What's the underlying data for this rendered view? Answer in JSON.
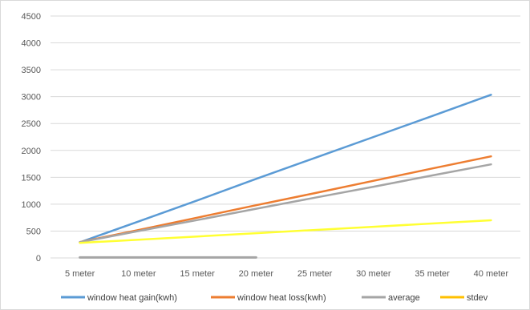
{
  "chart_data": {
    "type": "line",
    "categories": [
      "5 meter",
      "10 meter",
      "15 meter",
      "20 meter",
      "25 meter",
      "30 meter",
      "35 meter",
      "40 meter"
    ],
    "ylim": [
      0,
      4500
    ],
    "yticks": [
      0,
      500,
      1000,
      1500,
      2000,
      2500,
      3000,
      3500,
      4000,
      4500
    ],
    "ytick_labels": [
      "0",
      "500",
      "1000",
      "1500",
      "2000",
      "2500",
      "3000",
      "3500",
      "4000",
      "4500"
    ],
    "grid": true,
    "legend_position": "bottom",
    "series": [
      {
        "name": "window heat gain(kwh)",
        "color": "#5b9bd5",
        "values": [
          290,
          680,
          1070,
          1470,
          1860,
          2250,
          2640,
          3035
        ]
      },
      {
        "name": "window heat loss(kwh)",
        "color": "#ed7d31",
        "values": [
          295,
          520,
          750,
          980,
          1205,
          1435,
          1665,
          1890
        ]
      },
      {
        "name": "average",
        "color": "#a5a5a5",
        "values": [
          292,
          500,
          705,
          915,
          1120,
          1325,
          1535,
          1740
        ]
      },
      {
        "name": "stdev",
        "color": "#ffff33",
        "legend_color": "#ffc000",
        "values": [
          280,
          340,
          400,
          460,
          520,
          580,
          640,
          700
        ]
      }
    ],
    "extra_segment": {
      "series": "average",
      "color": "#a5a5a5",
      "x_start": "5 meter",
      "x_end": "20 meter",
      "value": 10
    }
  }
}
